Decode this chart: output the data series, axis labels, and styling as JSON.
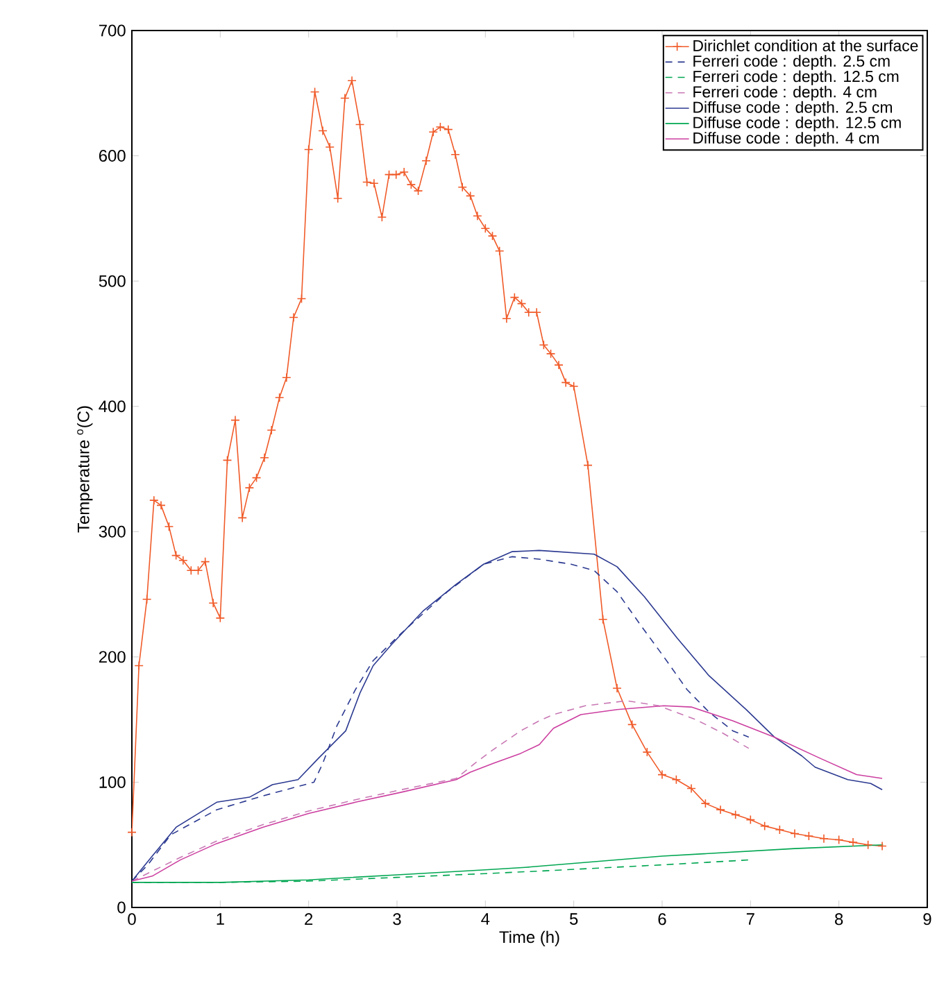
{
  "chart_data": {
    "type": "line",
    "xlabel": "Time (h)",
    "ylabel": "Temperature $^{o}$(C)",
    "xlim": [
      0,
      9
    ],
    "ylim": [
      0,
      700
    ],
    "xticks": [
      0,
      1,
      2,
      3,
      4,
      5,
      6,
      7,
      8,
      9
    ],
    "yticks": [
      0,
      100,
      200,
      300,
      400,
      500,
      600,
      700
    ],
    "grid": false,
    "legend": "top right",
    "series": [
      {
        "name": "Dirichlet condition at the surface",
        "color": "#f05a28",
        "marker": "cross",
        "line_style": "solid",
        "x": [
          0,
          0.08,
          0.17,
          0.25,
          0.33,
          0.42,
          0.5,
          0.58,
          0.67,
          0.75,
          0.83,
          0.92,
          1.0,
          1.08,
          1.17,
          1.25,
          1.33,
          1.41,
          1.5,
          1.58,
          1.67,
          1.75,
          1.83,
          1.92,
          2.0,
          2.07,
          2.16,
          2.24,
          2.33,
          2.41,
          2.49,
          2.58,
          2.66,
          2.74,
          2.83,
          2.91,
          2.99,
          3.08,
          3.16,
          3.24,
          3.33,
          3.41,
          3.49,
          3.58,
          3.66,
          3.74,
          3.83,
          3.91,
          4.0,
          4.08,
          4.16,
          4.24,
          4.33,
          4.41,
          4.49,
          4.58,
          4.66,
          4.74,
          4.83,
          4.91,
          5.0,
          5.16,
          5.33,
          5.49,
          5.66,
          5.83,
          6.0,
          6.16,
          6.33,
          6.49,
          6.66,
          6.83,
          7.0,
          7.16,
          7.33,
          7.5,
          7.66,
          7.83,
          8.0,
          8.16,
          8.33,
          8.49
        ],
        "values": [
          60,
          193,
          246,
          325,
          321,
          304,
          281,
          277,
          269,
          269,
          276,
          243,
          231,
          357,
          389,
          311,
          335,
          343,
          359,
          381,
          407,
          423,
          471,
          486,
          605,
          651,
          620,
          607,
          566,
          646,
          660,
          625,
          579,
          578,
          551,
          585,
          585,
          587,
          577,
          572,
          596,
          619,
          623,
          621,
          601,
          575,
          568,
          552,
          542,
          536,
          524,
          470,
          487,
          482,
          475,
          475,
          449,
          442,
          433,
          419,
          416,
          353,
          230,
          175,
          146,
          124,
          106,
          102,
          95,
          83,
          78,
          74,
          70,
          65,
          62,
          59,
          57,
          55,
          54,
          52,
          50,
          49
        ]
      },
      {
        "name": "Ferreri code : depth. 2.5 cm",
        "color": "#2b3990",
        "line_style": "dashed",
        "x": [
          0,
          0.18,
          0.44,
          0.96,
          1.48,
          2.06,
          2.16,
          2.32,
          2.53,
          2.73,
          3.05,
          3.57,
          3.98,
          4.3,
          4.61,
          4.97,
          5.23,
          5.49,
          5.75,
          6.02,
          6.28,
          6.53,
          6.8,
          6.98
        ],
        "values": [
          21,
          34,
          58,
          78,
          89,
          100,
          115,
          145,
          174,
          197,
          219,
          252,
          274,
          280,
          278,
          274,
          269,
          252,
          226,
          200,
          174,
          156,
          141,
          136
        ]
      },
      {
        "name": "Ferreri code : depth. 12.5 cm",
        "color": "#00a651",
        "line_style": "dashed",
        "x": [
          0,
          1,
          2,
          3,
          4,
          4.6,
          6,
          7
        ],
        "values": [
          20,
          20,
          21,
          24,
          27,
          29,
          34,
          38
        ]
      },
      {
        "name": "Ferreri code : depth. 4 cm",
        "color": "#c878b4",
        "line_style": "dashed",
        "x": [
          0,
          0.55,
          0.96,
          1.48,
          2.0,
          2.53,
          3.05,
          3.67,
          3.88,
          4.09,
          4.4,
          4.61,
          4.77,
          5.13,
          5.6,
          5.96,
          6.38,
          6.69,
          6.98
        ],
        "values": [
          21,
          40,
          53,
          66,
          77,
          86,
          94,
          103,
          115,
          126,
          141,
          149,
          154,
          161,
          165,
          161,
          150,
          139,
          127
        ]
      },
      {
        "name": "Diffuse code : depth. 2.5 cm",
        "color": "#2b3990",
        "line_style": "solid",
        "x": [
          0,
          0.23,
          0.5,
          0.96,
          1.33,
          1.59,
          1.88,
          2.11,
          2.42,
          2.58,
          2.73,
          2.94,
          3.3,
          3.67,
          3.98,
          4.3,
          4.61,
          5.23,
          5.49,
          5.8,
          6.17,
          6.53,
          6.95,
          7.27,
          7.58,
          7.73,
          8.1,
          8.36,
          8.49
        ],
        "values": [
          21,
          41,
          64,
          84,
          88,
          98,
          102,
          119,
          141,
          171,
          193,
          210,
          237,
          258,
          274,
          284,
          285,
          282,
          272,
          248,
          215,
          185,
          158,
          136,
          121,
          112,
          102,
          99,
          94
        ]
      },
      {
        "name": "Diffuse code : depth. 12.5 cm",
        "color": "#00a651",
        "line_style": "solid",
        "x": [
          0,
          1,
          2,
          3,
          4,
          4.45,
          6,
          7.5,
          8.5
        ],
        "values": [
          20,
          20,
          22,
          26,
          30,
          32,
          41,
          47,
          50
        ]
      },
      {
        "name": "Diffuse code : depth. 4 cm",
        "color": "#cc3fa0",
        "line_style": "solid",
        "x": [
          0,
          0.23,
          0.55,
          0.96,
          1.48,
          2.0,
          2.53,
          3.05,
          3.67,
          3.83,
          4.09,
          4.4,
          4.61,
          4.77,
          5.08,
          5.49,
          6.02,
          6.33,
          6.8,
          7.27,
          7.79,
          8.2,
          8.49
        ],
        "values": [
          21,
          25,
          38,
          51,
          64,
          75,
          84,
          92,
          102,
          108,
          115,
          123,
          130,
          143,
          154,
          158,
          161,
          160,
          149,
          136,
          119,
          106,
          103
        ]
      }
    ]
  }
}
